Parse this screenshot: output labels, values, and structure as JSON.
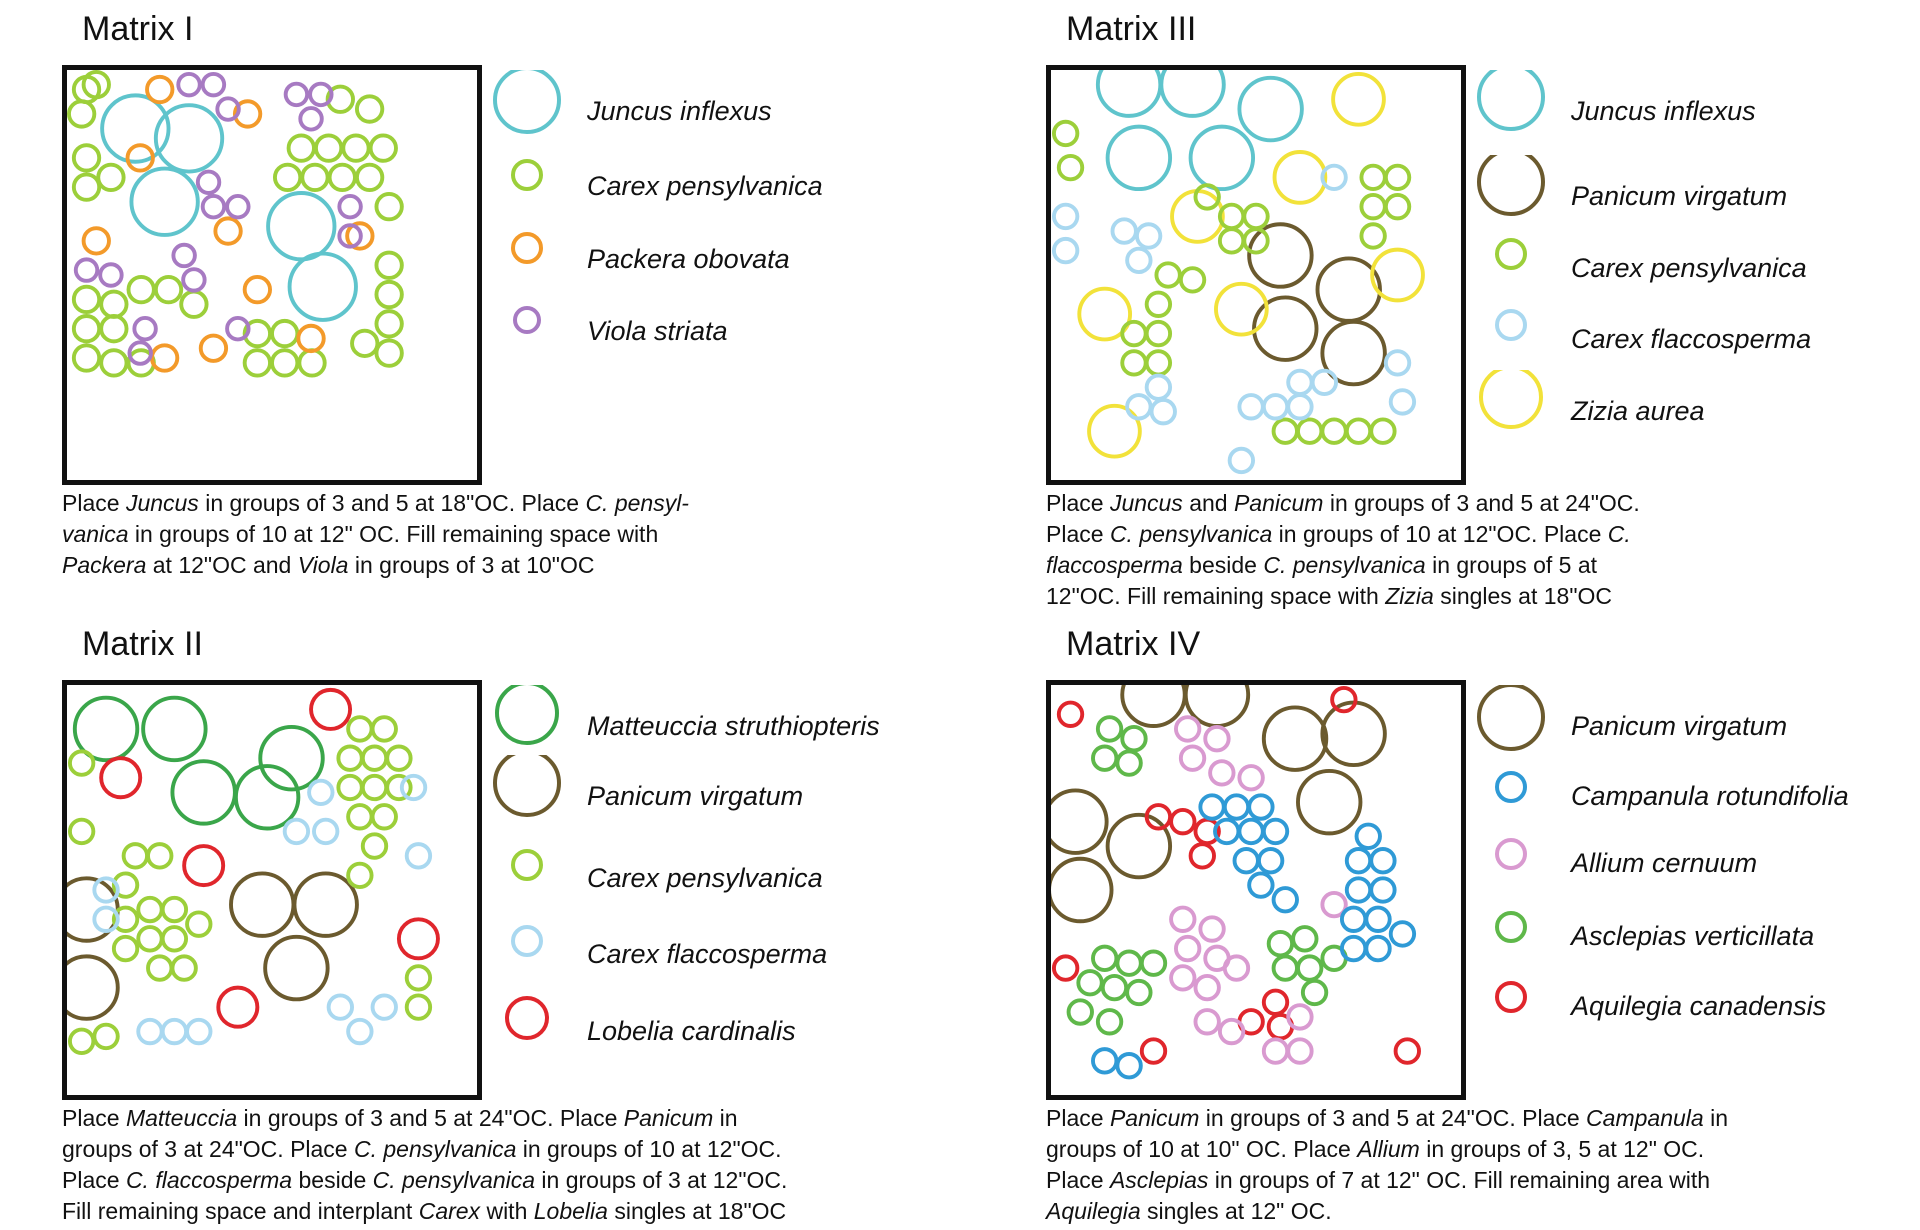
{
  "matrices": [
    {
      "title": "Matrix I",
      "legend": [
        {
          "name": "Juncus inflexus",
          "color": "#5fc4cc",
          "size": "large"
        },
        {
          "name": "Carex pensylvanica",
          "color": "#9ccf3a",
          "size": "small"
        },
        {
          "name": "Packera obovata",
          "color": "#f39a2a",
          "size": "small"
        },
        {
          "name": "Viola striata",
          "color": "#a77ac2",
          "size": "small"
        }
      ],
      "caption": [
        {
          "t": "Place ",
          "i": false
        },
        {
          "t": "Juncus",
          "i": true
        },
        {
          "t": " in groups of 3 and 5 at 18\"OC. Place ",
          "i": false
        },
        {
          "t": "C. pensyl-",
          "i": true
        },
        {
          "t": "\n",
          "i": false
        },
        {
          "t": "vanica",
          "i": true
        },
        {
          "t": " in groups of 10 at 12\" OC. Fill remaining space with",
          "i": false
        },
        {
          "t": "\n",
          "i": false
        },
        {
          "t": "Packera",
          "i": true
        },
        {
          "t": " at 12\"OC and ",
          "i": false
        },
        {
          "t": "Viola",
          "i": true
        },
        {
          "t": " in groups of 3 at 10\"OC",
          "i": false
        }
      ]
    },
    {
      "title": "Matrix III",
      "legend": [
        {
          "name": "Juncus inflexus",
          "color": "#5fc4cc",
          "size": "large"
        },
        {
          "name": "Panicum virgatum",
          "color": "#6b5a2e",
          "size": "large"
        },
        {
          "name": "Carex pensylvanica",
          "color": "#9ccf3a",
          "size": "small"
        },
        {
          "name": "Carex flaccosperma",
          "color": "#a9d8f0",
          "size": "small"
        },
        {
          "name": "Zizia aurea",
          "color": "#f2e23a",
          "size": "large"
        }
      ],
      "caption": [
        {
          "t": "Place ",
          "i": false
        },
        {
          "t": "Juncus",
          "i": true
        },
        {
          "t": " and ",
          "i": false
        },
        {
          "t": "Panicum",
          "i": true
        },
        {
          "t": " in groups of 3 and 5 at 24\"OC.",
          "i": false
        },
        {
          "t": "\n",
          "i": false
        },
        {
          "t": "Place ",
          "i": false
        },
        {
          "t": "C. pensylvanica",
          "i": true
        },
        {
          "t": " in groups of 10 at 12\"OC. Place ",
          "i": false
        },
        {
          "t": "C.",
          "i": true
        },
        {
          "t": "\n",
          "i": false
        },
        {
          "t": "flaccosperma",
          "i": true
        },
        {
          "t": " beside ",
          "i": false
        },
        {
          "t": "C. pensylvanica",
          "i": true
        },
        {
          "t": " in groups of 5 at",
          "i": false
        },
        {
          "t": "\n",
          "i": false
        },
        {
          "t": "12\"OC. Fill remaining space with ",
          "i": false
        },
        {
          "t": "Zizia",
          "i": true
        },
        {
          "t": " singles at 18\"OC",
          "i": false
        }
      ]
    },
    {
      "title": "Matrix II",
      "legend": [
        {
          "name": "Matteuccia struthiopteris",
          "color": "#3aa64a",
          "size": "large"
        },
        {
          "name": "Panicum virgatum",
          "color": "#6b5a2e",
          "size": "large"
        },
        {
          "name": "Carex pensylvanica",
          "color": "#9ccf3a",
          "size": "small"
        },
        {
          "name": "Carex flaccosperma",
          "color": "#a9d8f0",
          "size": "small"
        },
        {
          "name": "Lobelia cardinalis",
          "color": "#e0262c",
          "size": "medium"
        }
      ],
      "caption": [
        {
          "t": "Place ",
          "i": false
        },
        {
          "t": "Matteuccia",
          "i": true
        },
        {
          "t": " in groups of 3 and 5 at 24\"OC. Place ",
          "i": false
        },
        {
          "t": "Panicum",
          "i": true
        },
        {
          "t": " in",
          "i": false
        },
        {
          "t": "\n",
          "i": false
        },
        {
          "t": "groups of 3 at 24\"OC. Place ",
          "i": false
        },
        {
          "t": "C. pensylvanica",
          "i": true
        },
        {
          "t": " in groups of 10 at 12\"OC.",
          "i": false
        },
        {
          "t": "\n",
          "i": false
        },
        {
          "t": "Place ",
          "i": false
        },
        {
          "t": "C. flaccosperma",
          "i": true
        },
        {
          "t": " beside ",
          "i": false
        },
        {
          "t": "C. pensylvanica",
          "i": true
        },
        {
          "t": " in groups of 3 at 12\"OC.",
          "i": false
        },
        {
          "t": "\n",
          "i": false
        },
        {
          "t": "Fill remaining space and interplant ",
          "i": false
        },
        {
          "t": "Carex",
          "i": true
        },
        {
          "t": " with ",
          "i": false
        },
        {
          "t": "Lobelia",
          "i": true
        },
        {
          "t": " singles at 18\"OC",
          "i": false
        }
      ]
    },
    {
      "title": "Matrix IV",
      "legend": [
        {
          "name": "Panicum virgatum",
          "color": "#6b5a2e",
          "size": "large"
        },
        {
          "name": "Campanula rotundifolia",
          "color": "#2f9ad6",
          "size": "small"
        },
        {
          "name": "Allium cernuum",
          "color": "#d99ad0",
          "size": "small"
        },
        {
          "name": "Asclepias verticillata",
          "color": "#5fb84a",
          "size": "small"
        },
        {
          "name": "Aquilegia canadensis",
          "color": "#e0262c",
          "size": "small"
        }
      ],
      "caption": [
        {
          "t": "Place ",
          "i": false
        },
        {
          "t": "Panicum",
          "i": true
        },
        {
          "t": " in groups of 3 and 5 at 24\"OC. Place ",
          "i": false
        },
        {
          "t": "Campanula",
          "i": true
        },
        {
          "t": " in",
          "i": false
        },
        {
          "t": "\n",
          "i": false
        },
        {
          "t": "groups of 10 at 10\" OC. Place ",
          "i": false
        },
        {
          "t": "Allium",
          "i": true
        },
        {
          "t": " in groups of 3, 5 at 12\" OC.",
          "i": false
        },
        {
          "t": "\n",
          "i": false
        },
        {
          "t": "Place ",
          "i": false
        },
        {
          "t": "Asclepias",
          "i": true
        },
        {
          "t": " in groups of 7 at 12\" OC. Fill remaining area with",
          "i": false
        },
        {
          "t": "\n",
          "i": false
        },
        {
          "t": "Aquilegia",
          "i": true
        },
        {
          "t": " singles at 12\" OC.",
          "i": false
        }
      ]
    }
  ]
}
